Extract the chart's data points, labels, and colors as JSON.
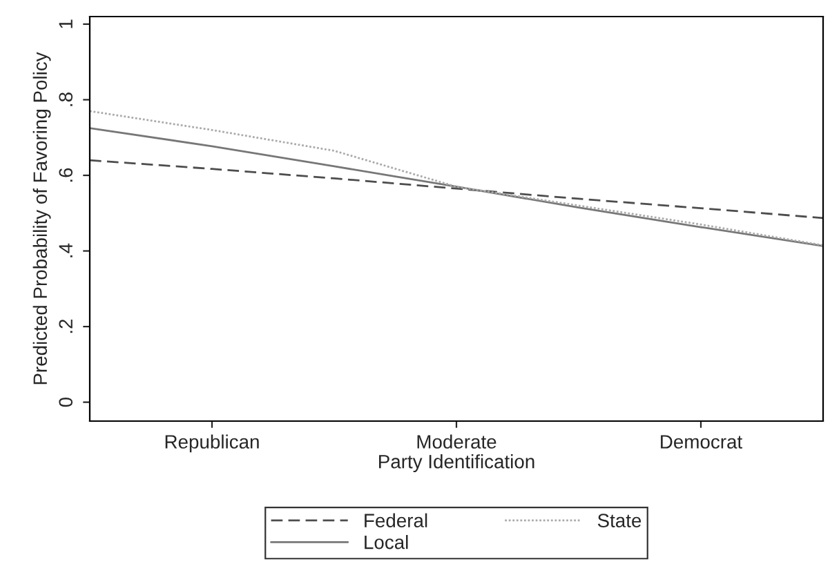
{
  "chart_data": {
    "type": "line",
    "xlabel": "Party Identification",
    "ylabel": "Predicted Probability of Favoring Policy",
    "categories": [
      null,
      "Republican",
      null,
      "Moderate",
      null,
      "Democrat",
      null
    ],
    "series": [
      {
        "name": "Federal",
        "color": "#4d4d4d",
        "line_style": "dashed",
        "values": [
          0.64,
          0.617,
          0.592,
          0.565,
          0.538,
          0.513,
          0.487
        ]
      },
      {
        "name": "Local",
        "color": "#777777",
        "line_style": "solid",
        "values": [
          0.725,
          0.677,
          0.624,
          0.57,
          0.515,
          0.463,
          0.413
        ]
      },
      {
        "name": "State",
        "color": "#aaaaaa",
        "line_style": "dotted",
        "values": [
          0.77,
          0.72,
          0.665,
          0.57,
          0.52,
          0.47,
          0.415
        ]
      }
    ],
    "ylim": [
      -0.05,
      1.02
    ],
    "yticks": [
      {
        "value": 0,
        "label": "0"
      },
      {
        "value": 0.2,
        "label": ".2"
      },
      {
        "value": 0.4,
        "label": ".4"
      },
      {
        "value": 0.6,
        "label": ".6"
      },
      {
        "value": 0.8,
        "label": ".8"
      },
      {
        "value": 1,
        "label": "1"
      }
    ],
    "grid": false,
    "legend": "bottom",
    "marker": "none"
  }
}
